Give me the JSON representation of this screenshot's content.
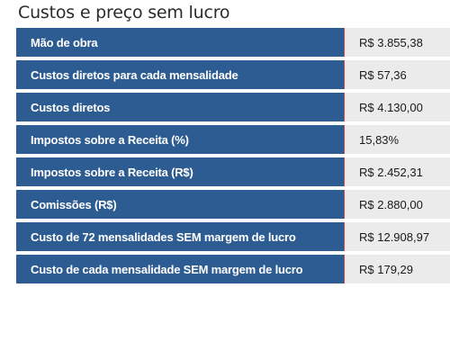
{
  "title": "Custos e preço sem lucro",
  "rows": [
    {
      "label": "Mão de obra",
      "value": "R$ 3.855,38"
    },
    {
      "label": "Custos diretos para cada mensalidade",
      "value": "R$ 57,36"
    },
    {
      "label": "Custos diretos",
      "value": "R$ 4.130,00"
    },
    {
      "label": "Impostos sobre a Receita (%)",
      "value": "15,83%"
    },
    {
      "label": "Impostos sobre a Receita (R$)",
      "value": "R$ 2.452,31"
    },
    {
      "label": "Comissões (R$)",
      "value": "R$ 2.880,00"
    },
    {
      "label": "Custo de 72 mensalidades SEM margem de lucro",
      "value": "R$ 12.908,97"
    },
    {
      "label": "Custo de cada mensalidade SEM margem de lucro",
      "value": "R$ 179,29"
    }
  ],
  "colors": {
    "label_bg": "#2d5c92",
    "label_text": "#ffffff",
    "value_bg": "#ebebeb",
    "separator": "#c0504d"
  }
}
